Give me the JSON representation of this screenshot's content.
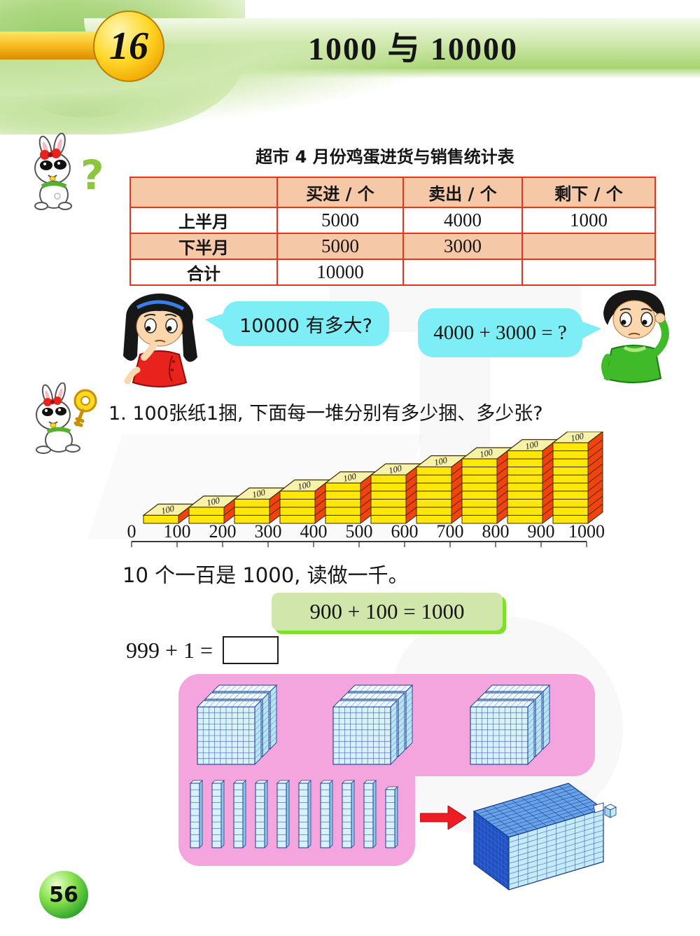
{
  "page": {
    "lesson_number": "16",
    "title": "1000 与 10000",
    "page_number": "56"
  },
  "table": {
    "title": "超市 4 月份鸡蛋进货与销售统计表",
    "headers": [
      "",
      "买进 / 个",
      "卖出 / 个",
      "剩下 / 个"
    ],
    "rows": [
      {
        "label": "上半月",
        "values": [
          "5000",
          "4000",
          "1000"
        ]
      },
      {
        "label": "下半月",
        "values": [
          "5000",
          "3000",
          ""
        ]
      },
      {
        "label": "合计",
        "values": [
          "10000",
          "",
          ""
        ]
      }
    ]
  },
  "dialog": {
    "girl_bubble": "10000 有多大?",
    "boy_bubble": "4000 + 3000 = ?"
  },
  "question1": "1. 100张纸1捆, 下面每一堆分别有多少捆、多少张?",
  "chart_data": {
    "type": "bar",
    "title": "",
    "categories": [
      "0",
      "100",
      "200",
      "300",
      "400",
      "500",
      "600",
      "700",
      "800",
      "900",
      "1000"
    ],
    "values": [
      0,
      1,
      2,
      3,
      4,
      5,
      6,
      7,
      8,
      9,
      10
    ],
    "bundle_label": "100",
    "xlabel": "",
    "ylabel": "",
    "ylim": [
      0,
      10
    ],
    "legend": false
  },
  "statement": "10 个一百是 1000, 读做一千。",
  "equation_box": "900 + 100 = 1000",
  "exercise": "999 + 1 =",
  "colors": {
    "table_header_bg": "#f5c8a8",
    "table_border": "#e43523",
    "bubble": "#7deef5",
    "equation_bg": "#d0e6ab",
    "equation_shadow": "#7ee02b",
    "pink_panel": "#f5a5dd",
    "bundle_front": "#ffe70a",
    "bundle_side": "#f2430e",
    "arrow_red": "#ee1c24",
    "header_green": "#a6d46f",
    "gold": "#f6b71c"
  }
}
